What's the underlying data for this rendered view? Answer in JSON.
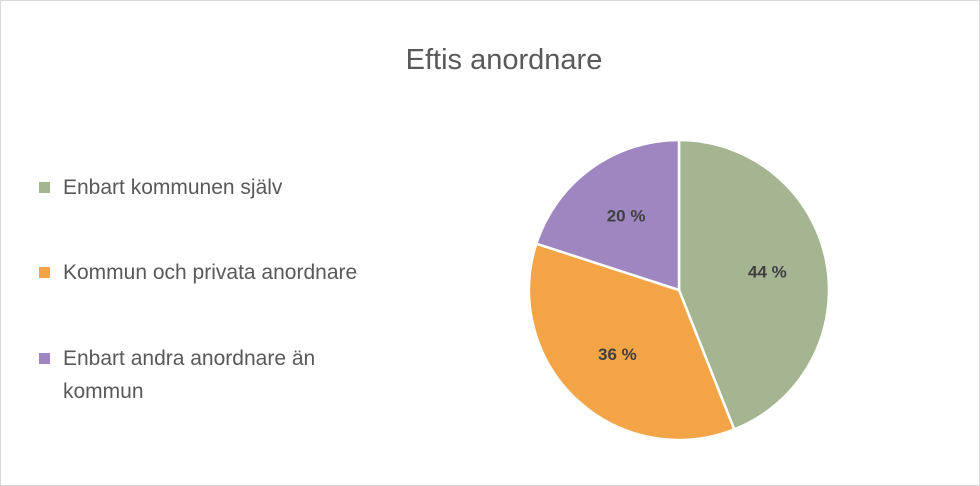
{
  "chart_data": {
    "type": "pie",
    "title": "Eftis anordnare",
    "categories": [
      "Enbart kommunen själv",
      "Kommun och privata anordnare",
      "Enbart andra anordnare än kommun"
    ],
    "values": [
      44,
      36,
      20
    ],
    "value_labels": [
      "44 %",
      "36 %",
      "20 %"
    ],
    "colors": [
      "#a5b592",
      "#f3a447",
      "#9e86c0"
    ],
    "legend": "left"
  }
}
